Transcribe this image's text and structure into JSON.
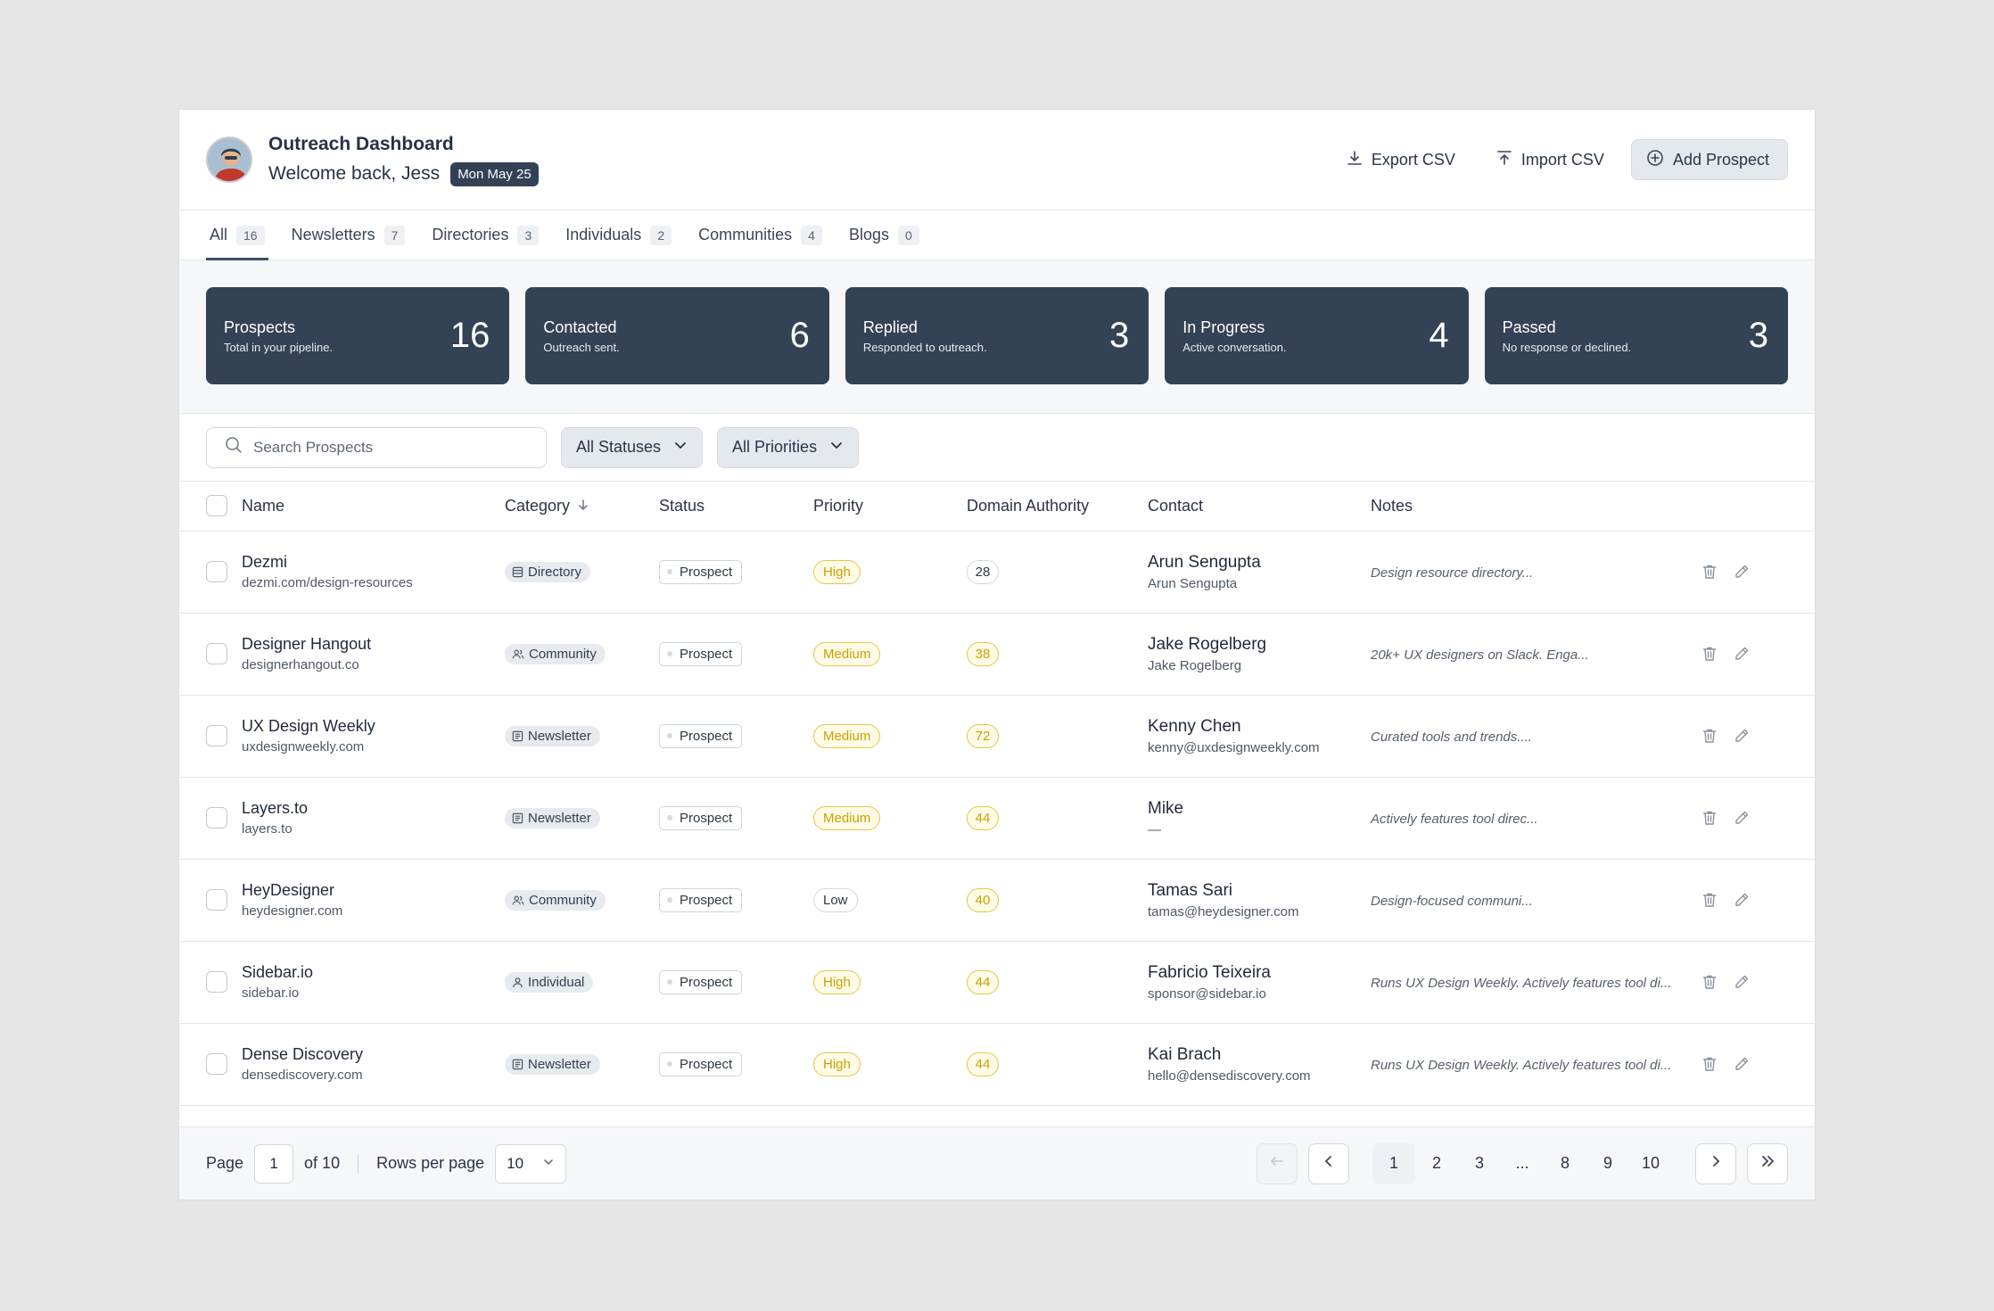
{
  "header": {
    "title": "Outreach Dashboard",
    "welcome": "Welcome back, Jess",
    "date": "Mon May 25",
    "export_label": "Export CSV",
    "import_label": "Import CSV",
    "add_label": "Add Prospect"
  },
  "tabs": [
    {
      "label": "All",
      "count": "16"
    },
    {
      "label": "Newsletters",
      "count": "7"
    },
    {
      "label": "Directories",
      "count": "3"
    },
    {
      "label": "Individuals",
      "count": "2"
    },
    {
      "label": "Communities",
      "count": "4"
    },
    {
      "label": "Blogs",
      "count": "0"
    }
  ],
  "stats": [
    {
      "label": "Prospects",
      "sub": "Total in your pipeline.",
      "value": "16"
    },
    {
      "label": "Contacted",
      "sub": "Outreach sent.",
      "value": "6"
    },
    {
      "label": "Replied",
      "sub": "Responded to outreach.",
      "value": "3"
    },
    {
      "label": "In Progress",
      "sub": "Active conversation.",
      "value": "4"
    },
    {
      "label": "Passed",
      "sub": "No response or declined.",
      "value": "3"
    }
  ],
  "filters": {
    "search_placeholder": "Search Prospects",
    "status": "All Statuses",
    "priority": "All Priorities"
  },
  "columns": {
    "name": "Name",
    "category": "Category",
    "status": "Status",
    "priority": "Priority",
    "da": "Domain Authority",
    "contact": "Contact",
    "notes": "Notes"
  },
  "rows": [
    {
      "name": "Dezmi",
      "url": "dezmi.com/design-resources",
      "category": "Directory",
      "status": "Prospect",
      "priority": "High",
      "da": "28",
      "contact": "Arun Sengupta",
      "contact_sub": "Arun Sengupta",
      "notes": "Design resource directory..."
    },
    {
      "name": "Designer Hangout",
      "url": "designerhangout.co",
      "category": "Community",
      "status": "Prospect",
      "priority": "Medium",
      "da": "38",
      "contact": "Jake Rogelberg",
      "contact_sub": "Jake Rogelberg",
      "notes": "20k+ UX designers on Slack. Enga..."
    },
    {
      "name": "UX Design Weekly",
      "url": "uxdesignweekly.com",
      "category": "Newsletter",
      "status": "Prospect",
      "priority": "Medium",
      "da": "72",
      "contact": "Kenny Chen",
      "contact_sub": "kenny@uxdesignweekly.com",
      "notes": "Curated tools and trends...."
    },
    {
      "name": "Layers.to",
      "url": "layers.to",
      "category": "Newsletter",
      "status": "Prospect",
      "priority": "Medium",
      "da": "44",
      "contact": "Mike",
      "contact_sub": "—",
      "notes": "Actively features tool direc..."
    },
    {
      "name": "HeyDesigner",
      "url": "heydesigner.com",
      "category": "Community",
      "status": "Prospect",
      "priority": "Low",
      "da": "40",
      "contact": "Tamas Sari",
      "contact_sub": "tamas@heydesigner.com",
      "notes": "Design-focused communi..."
    },
    {
      "name": "Sidebar.io",
      "url": "sidebar.io",
      "category": "Individual",
      "status": "Prospect",
      "priority": "High",
      "da": "44",
      "contact": "Fabricio Teixeira",
      "contact_sub": "sponsor@sidebar.io",
      "notes": "Runs UX Design Weekly. Actively features tool di..."
    },
    {
      "name": "Dense Discovery",
      "url": "densediscovery.com",
      "category": "Newsletter",
      "status": "Prospect",
      "priority": "High",
      "da": "44",
      "contact": "Kai Brach",
      "contact_sub": "hello@densediscovery.com",
      "notes": "Runs UX Design Weekly. Actively features tool di..."
    }
  ],
  "footer": {
    "page_label": "Page",
    "page_value": "1",
    "of_label": "of 10",
    "rows_label": "Rows per page",
    "rows_value": "10",
    "pages": [
      "1",
      "2",
      "3",
      "...",
      "8",
      "9",
      "10"
    ]
  },
  "colors": {
    "dark": "#344255",
    "yellow_text": "#c9a200",
    "yellow_border": "#e2c84a",
    "yellow_bg": "#fffbe6"
  }
}
